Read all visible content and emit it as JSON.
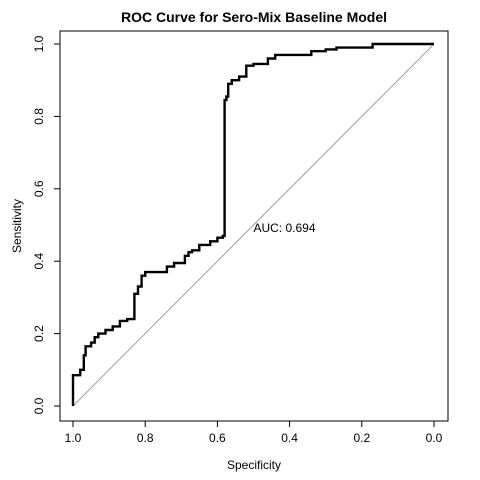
{
  "chart_data": {
    "type": "line",
    "title": "ROC Curve for Sero-Mix Baseline Model",
    "xlabel": "Specificity",
    "ylabel": "Sensitivity",
    "xlim": [
      1.0,
      0.0
    ],
    "ylim": [
      0.0,
      1.0
    ],
    "x_reversed": true,
    "grid": false,
    "x_ticks": [
      "1.0",
      "0.8",
      "0.6",
      "0.4",
      "0.2",
      "0.0"
    ],
    "x_tick_values": [
      1.0,
      0.8,
      0.6,
      0.4,
      0.2,
      0.0
    ],
    "y_ticks": [
      "0.0",
      "0.2",
      "0.4",
      "0.6",
      "0.8",
      "1.0"
    ],
    "y_tick_values": [
      0.0,
      0.2,
      0.4,
      0.6,
      0.8,
      1.0
    ],
    "annotation": {
      "text": "AUC: 0.694",
      "x": 0.5,
      "y": 0.48
    },
    "diagonal": {
      "from": [
        1.0,
        0.0
      ],
      "to": [
        0.0,
        1.0
      ],
      "color": "#a0a0a0"
    },
    "series": [
      {
        "color": "#000000",
        "points": [
          [
            1.0,
            0.0
          ],
          [
            1.0,
            0.085
          ],
          [
            0.98,
            0.085
          ],
          [
            0.98,
            0.1
          ],
          [
            0.97,
            0.1
          ],
          [
            0.97,
            0.14
          ],
          [
            0.965,
            0.14
          ],
          [
            0.965,
            0.165
          ],
          [
            0.95,
            0.165
          ],
          [
            0.95,
            0.175
          ],
          [
            0.94,
            0.175
          ],
          [
            0.94,
            0.19
          ],
          [
            0.93,
            0.19
          ],
          [
            0.93,
            0.2
          ],
          [
            0.91,
            0.2
          ],
          [
            0.91,
            0.21
          ],
          [
            0.89,
            0.21
          ],
          [
            0.89,
            0.22
          ],
          [
            0.87,
            0.22
          ],
          [
            0.87,
            0.235
          ],
          [
            0.85,
            0.235
          ],
          [
            0.85,
            0.24
          ],
          [
            0.83,
            0.24
          ],
          [
            0.83,
            0.31
          ],
          [
            0.82,
            0.31
          ],
          [
            0.82,
            0.33
          ],
          [
            0.81,
            0.33
          ],
          [
            0.81,
            0.36
          ],
          [
            0.8,
            0.36
          ],
          [
            0.8,
            0.37
          ],
          [
            0.74,
            0.37
          ],
          [
            0.74,
            0.385
          ],
          [
            0.72,
            0.385
          ],
          [
            0.72,
            0.395
          ],
          [
            0.69,
            0.395
          ],
          [
            0.69,
            0.415
          ],
          [
            0.68,
            0.415
          ],
          [
            0.68,
            0.425
          ],
          [
            0.67,
            0.425
          ],
          [
            0.67,
            0.43
          ],
          [
            0.65,
            0.43
          ],
          [
            0.65,
            0.445
          ],
          [
            0.62,
            0.445
          ],
          [
            0.62,
            0.455
          ],
          [
            0.6,
            0.455
          ],
          [
            0.6,
            0.465
          ],
          [
            0.585,
            0.465
          ],
          [
            0.585,
            0.47
          ],
          [
            0.58,
            0.47
          ],
          [
            0.58,
            0.845
          ],
          [
            0.575,
            0.845
          ],
          [
            0.575,
            0.855
          ],
          [
            0.57,
            0.855
          ],
          [
            0.57,
            0.89
          ],
          [
            0.56,
            0.89
          ],
          [
            0.56,
            0.9
          ],
          [
            0.54,
            0.9
          ],
          [
            0.54,
            0.91
          ],
          [
            0.52,
            0.91
          ],
          [
            0.52,
            0.94
          ],
          [
            0.5,
            0.94
          ],
          [
            0.5,
            0.945
          ],
          [
            0.46,
            0.945
          ],
          [
            0.46,
            0.96
          ],
          [
            0.44,
            0.96
          ],
          [
            0.44,
            0.97
          ],
          [
            0.34,
            0.97
          ],
          [
            0.34,
            0.98
          ],
          [
            0.3,
            0.98
          ],
          [
            0.3,
            0.985
          ],
          [
            0.27,
            0.985
          ],
          [
            0.27,
            0.99
          ],
          [
            0.17,
            0.99
          ],
          [
            0.17,
            1.0
          ],
          [
            0.0,
            1.0
          ]
        ]
      }
    ]
  }
}
